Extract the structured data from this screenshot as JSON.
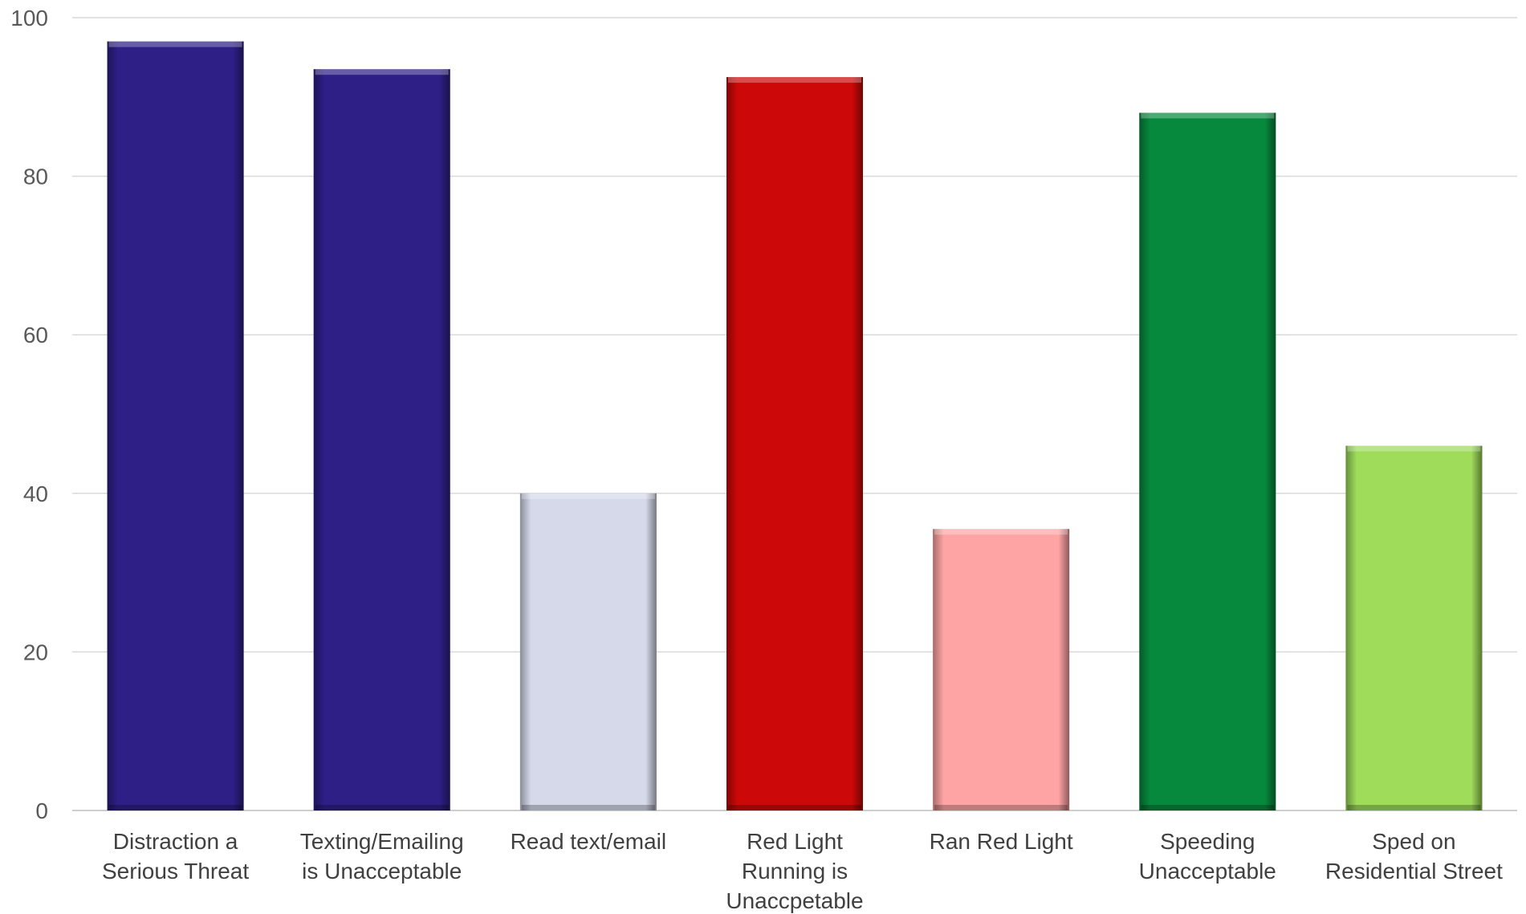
{
  "chart_data": {
    "type": "bar",
    "categories": [
      [
        "Distraction a",
        "Serious Threat"
      ],
      [
        "Texting/Emailing",
        "is Unacceptable"
      ],
      [
        "Read text/email"
      ],
      [
        "Red Light",
        "Running is",
        "Unaccpetable"
      ],
      [
        "Ran Red Light"
      ],
      [
        "Speeding",
        "Unacceptable"
      ],
      [
        "Sped on",
        "Residential Street"
      ]
    ],
    "values": [
      97,
      93.5,
      40,
      92.5,
      35.5,
      88,
      46
    ],
    "colors": [
      "#2e1f87",
      "#2e1f87",
      "#d5d9ea",
      "#cc0808",
      "#ffa4a4",
      "#07893d",
      "#9edc5a"
    ],
    "ylim": [
      0,
      100
    ],
    "yticks": [
      0,
      20,
      40,
      60,
      80,
      100
    ],
    "grid": true,
    "title": "",
    "xlabel": "",
    "ylabel": ""
  }
}
